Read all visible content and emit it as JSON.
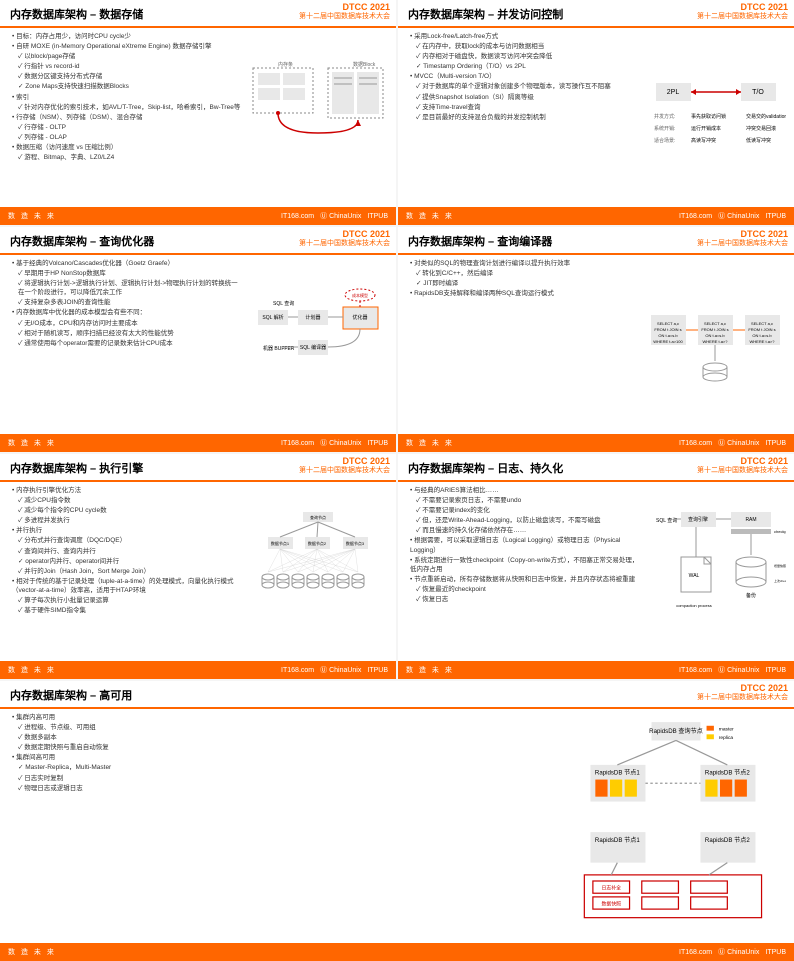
{
  "conf": {
    "name": "DTCC",
    "year": "2021",
    "sub": "第十二届中国数据库技术大会"
  },
  "footer": {
    "slogan": "数 造 未 来",
    "s1": "IT168.com",
    "s2": "ChinaUnix",
    "s3": "ITPUB"
  },
  "colors": {
    "accent": "#ff6600",
    "gray": "#888888",
    "box": "#e8e8e8",
    "red": "#cc0000",
    "dark": "#333333",
    "yellow": "#ffcc00"
  },
  "slides": [
    {
      "title": "内存数据库架构 – 数据存储",
      "items": [
        "目标：内存占用少，访问时CPU cycle少",
        "自研 MOXE (in-Memory Operational eXtreme Engine) 数据存储引擎",
        {
          "sub": [
            "以block/page存储",
            "行指针 vs record-id",
            "数据分区键支持分布式存储",
            "Zone Maps支持快速扫描数据Blocks"
          ]
        },
        "索引",
        {
          "sub": [
            "针对内存优化的索引技术，如AVL/T-Tree，Skip-list，哈希索引，Bw-Tree等"
          ]
        },
        "行存储（NSM）、列存储（DSM）、混合存储",
        {
          "sub": [
            "行存储 - OLTP",
            "列存储 - OLAP"
          ]
        },
        "数据压缩（访问速度 vs 压缩比例）",
        {
          "sub": [
            "游程、Bitmap、字典、LZ0/LZ4"
          ]
        }
      ],
      "dia": "storage"
    },
    {
      "title": "内存数据库架构 – 并发访问控制",
      "items": [
        "采用Lock-free/Latch-free方式",
        {
          "sub": [
            "在内存中，获取lock的成本与访问数据相当",
            "内存相对于磁盘快，数据读写访问冲突会降低",
            "Timestamp Ordering（T/O）vs 2PL"
          ]
        },
        "MVCC（Multi-version T/O）",
        {
          "sub": [
            "对于数据库的单个逻辑对象创建多个物理版本，读写操作互不阻塞",
            "提供Snapshot Isolation（SI）隔离等级",
            "支持Time-travel查询",
            "是目前最好的支持混合负载的并发控制机制"
          ]
        }
      ],
      "dia": "concurrency"
    },
    {
      "title": "内存数据库架构 – 查询优化器",
      "items": [
        "基于经典的Volcano/Cascades优化器（Goetz Graefe）",
        {
          "sub": [
            "早期用于HP NonStop数据库",
            "将逻辑执行计划->逻辑执行计划、逻辑执行计划->物理执行计划的转换统一在一个阶段进行，可以降低冗余工作",
            "支持复杂多表JOIN的查询性能"
          ]
        },
        "内存数据库中优化器的成本模型会有些不同：",
        {
          "sub": [
            "无I/O成本，CPU和内存访问时主要成本",
            "相对于随机读写，顺序扫描已经没有太大的性能优势",
            "通常使用每个operator需要的记录数来估计CPU成本"
          ]
        }
      ],
      "dia": "optimizer"
    },
    {
      "title": "内存数据库架构 – 查询编译器",
      "items": [
        "对类似的SQL的物理查询计划进行编译以提升执行效率",
        {
          "sub": [
            "转化到C/C++，然后编译",
            "JIT即时编译"
          ]
        },
        "RapidsDB支持解释和编译两种SQL查询运行模式"
      ],
      "dia": "compiler"
    },
    {
      "title": "内存数据库架构 – 执行引擎",
      "items": [
        "内存执行引擎优化方法",
        {
          "sub": [
            "减少CPU指令数",
            "减少每个指令的CPU cycle数",
            "多进程并发执行"
          ]
        },
        "并行执行",
        {
          "sub": [
            "分布式并行查询调度（DQC/DQE）",
            "查询间并行、查询内并行",
            "operator内并行、operator间并行",
            "并行的Join（Hash Join，Sort Merge Join）"
          ]
        },
        "相对于传统的基于记录处理（tuple-at-a-time）的处理模式，向量化执行模式（vector-at-a-time）效率高，适用于HTAP环境",
        {
          "sub": [
            "算子每次执行小批量记录运算",
            "基于硬件SIMD指令集"
          ]
        }
      ],
      "dia": "engine"
    },
    {
      "title": "内存数据库架构 – 日志、持久化",
      "items": [
        "与经典的ARIES算法相比……",
        {
          "sub": [
            "不需要记录索页日志，不需要undo",
            "不需要记录index的变化",
            "但，还是Write-Ahead-Logging，以防止磁盘读写，不需写磁盘",
            "而且慢速的持久化存储依然存在……"
          ]
        },
        "根据需要，可以采取逻辑日志（Logical Logging）或物理日志（Physical Logging）",
        "系统定期进行一致性checkpoint（Copy-on-write方式），不阻塞正常交易处理，低内存占用",
        "节点重新启动，所有存储数据将从快照和日志中恢复，并且内存状态将被重建",
        {
          "sub": [
            "恢复最近的checkpoint",
            "恢复日志"
          ]
        }
      ],
      "dia": "log"
    },
    {
      "title": "内存数据库架构 – 高可用",
      "items": [
        "集群内高可用",
        {
          "sub": [
            "进程级、节点级、可用组",
            "数据多副本",
            "数据定期快照与重启自动恢复"
          ]
        },
        "集群间高可用",
        {
          "sub": [
            "Master-Replica，Multi-Master",
            "日志实时复制",
            "物理日志或逻辑日志"
          ]
        }
      ],
      "dia": "ha"
    }
  ]
}
